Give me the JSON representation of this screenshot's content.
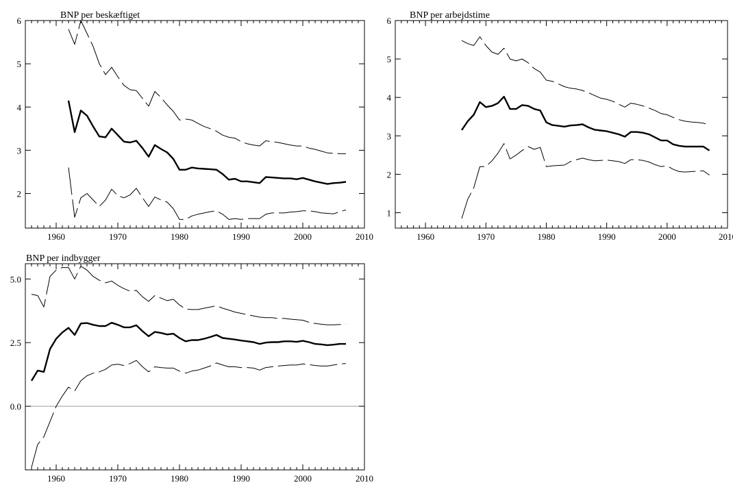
{
  "chart_data": [
    {
      "type": "line",
      "title": "BNP per beskæftiget",
      "xlabel": "",
      "ylabel": "",
      "xlim": [
        1955,
        2010
      ],
      "ylim": [
        1.2,
        6
      ],
      "xticks": [
        1960,
        1970,
        1980,
        1990,
        2000,
        2010
      ],
      "yticks": [
        2,
        3,
        4,
        5,
        6
      ],
      "ytick_labels": [
        "2",
        "3",
        "4",
        "5",
        "6"
      ],
      "grid": false,
      "legend": "none",
      "x": [
        1962,
        1963,
        1964,
        1965,
        1966,
        1967,
        1968,
        1969,
        1970,
        1971,
        1972,
        1973,
        1974,
        1975,
        1976,
        1977,
        1978,
        1979,
        1980,
        1981,
        1982,
        1983,
        1984,
        1985,
        1986,
        1987,
        1988,
        1989,
        1990,
        1991,
        1992,
        1993,
        1994,
        1995,
        1996,
        1997,
        1998,
        1999,
        2000,
        2001,
        2002,
        2003,
        2004,
        2005,
        2006,
        2007
      ],
      "series": [
        {
          "values": [
            4.15,
            3.42,
            3.92,
            3.8,
            3.55,
            3.32,
            3.3,
            3.5,
            3.35,
            3.2,
            3.18,
            3.22,
            3.05,
            2.85,
            3.12,
            3.03,
            2.95,
            2.8,
            2.55,
            2.55,
            2.6,
            2.58,
            2.57,
            2.56,
            2.55,
            2.45,
            2.32,
            2.34,
            2.28,
            2.28,
            2.26,
            2.24,
            2.38,
            2.37,
            2.36,
            2.35,
            2.35,
            2.33,
            2.36,
            2.32,
            2.28,
            2.25,
            2.22,
            2.24,
            2.25,
            2.27
          ],
          "style": "solid-thick"
        },
        {
          "values": [
            5.8,
            5.45,
            6.0,
            5.7,
            5.4,
            5.0,
            4.75,
            4.92,
            4.7,
            4.5,
            4.4,
            4.38,
            4.2,
            4.02,
            4.36,
            4.22,
            4.05,
            3.9,
            3.7,
            3.72,
            3.7,
            3.62,
            3.55,
            3.5,
            3.44,
            3.35,
            3.3,
            3.28,
            3.2,
            3.15,
            3.12,
            3.1,
            3.22,
            3.2,
            3.18,
            3.15,
            3.12,
            3.1,
            3.1,
            3.05,
            3.02,
            2.98,
            2.94,
            2.93,
            2.92,
            2.92
          ],
          "style": "dashed"
        },
        {
          "values": [
            2.6,
            1.45,
            1.9,
            2.0,
            1.85,
            1.7,
            1.85,
            2.1,
            1.95,
            1.9,
            1.97,
            2.12,
            1.9,
            1.7,
            1.92,
            1.85,
            1.8,
            1.65,
            1.4,
            1.4,
            1.48,
            1.52,
            1.55,
            1.58,
            1.6,
            1.52,
            1.4,
            1.42,
            1.4,
            1.42,
            1.42,
            1.42,
            1.52,
            1.55,
            1.55,
            1.55,
            1.57,
            1.58,
            1.6,
            1.6,
            1.58,
            1.55,
            1.54,
            1.53,
            1.58,
            1.62
          ],
          "style": "dashed"
        }
      ]
    },
    {
      "type": "line",
      "title": "BNP per arbejdstime",
      "xlabel": "",
      "ylabel": "",
      "xlim": [
        1955,
        2010
      ],
      "ylim": [
        0.6,
        6
      ],
      "xticks": [
        1960,
        1970,
        1980,
        1990,
        2000,
        2010
      ],
      "yticks": [
        1,
        2,
        3,
        4,
        5,
        6
      ],
      "ytick_labels": [
        "1",
        "2",
        "3",
        "4",
        "5",
        "6"
      ],
      "grid": false,
      "legend": "none",
      "x": [
        1966,
        1967,
        1968,
        1969,
        1970,
        1971,
        1972,
        1973,
        1974,
        1975,
        1976,
        1977,
        1978,
        1979,
        1980,
        1981,
        1982,
        1983,
        1984,
        1985,
        1986,
        1987,
        1988,
        1989,
        1990,
        1991,
        1992,
        1993,
        1994,
        1995,
        1996,
        1997,
        1998,
        1999,
        2000,
        2001,
        2002,
        2003,
        2004,
        2005,
        2006,
        2007
      ],
      "series": [
        {
          "values": [
            3.15,
            3.38,
            3.55,
            3.88,
            3.75,
            3.78,
            3.85,
            4.02,
            3.7,
            3.7,
            3.8,
            3.78,
            3.7,
            3.66,
            3.35,
            3.28,
            3.26,
            3.24,
            3.27,
            3.28,
            3.3,
            3.22,
            3.16,
            3.14,
            3.12,
            3.08,
            3.04,
            2.98,
            3.1,
            3.1,
            3.08,
            3.04,
            2.96,
            2.88,
            2.88,
            2.78,
            2.74,
            2.72,
            2.72,
            2.72,
            2.72,
            2.62
          ],
          "style": "solid-thick"
        },
        {
          "values": [
            5.48,
            5.4,
            5.35,
            5.58,
            5.35,
            5.18,
            5.12,
            5.28,
            5.0,
            4.95,
            5.0,
            4.9,
            4.75,
            4.66,
            4.45,
            4.42,
            4.35,
            4.28,
            4.24,
            4.22,
            4.18,
            4.12,
            4.05,
            3.98,
            3.95,
            3.9,
            3.82,
            3.75,
            3.85,
            3.82,
            3.78,
            3.72,
            3.66,
            3.58,
            3.55,
            3.48,
            3.42,
            3.38,
            3.36,
            3.35,
            3.33,
            3.28
          ],
          "style": "dashed"
        },
        {
          "values": [
            0.85,
            1.35,
            1.65,
            2.2,
            2.2,
            2.35,
            2.55,
            2.8,
            2.4,
            2.5,
            2.62,
            2.72,
            2.65,
            2.7,
            2.2,
            2.22,
            2.23,
            2.24,
            2.33,
            2.38,
            2.42,
            2.38,
            2.35,
            2.36,
            2.37,
            2.35,
            2.33,
            2.28,
            2.38,
            2.38,
            2.36,
            2.32,
            2.25,
            2.2,
            2.22,
            2.13,
            2.07,
            2.06,
            2.07,
            2.08,
            2.09,
            1.98
          ],
          "style": "dashed"
        }
      ]
    },
    {
      "type": "line",
      "title": "BNP per indbygger",
      "xlabel": "",
      "ylabel": "",
      "xlim": [
        1955,
        2010
      ],
      "ylim": [
        -2.5,
        5.6
      ],
      "xticks": [
        1960,
        1970,
        1980,
        1990,
        2000,
        2010
      ],
      "yticks": [
        0.0,
        2.5,
        5.0
      ],
      "ytick_labels": [
        "0.0",
        "2.5",
        "5.0"
      ],
      "zero_line": true,
      "grid": false,
      "legend": "none",
      "x": [
        1956,
        1957,
        1958,
        1959,
        1960,
        1961,
        1962,
        1963,
        1964,
        1965,
        1966,
        1967,
        1968,
        1969,
        1970,
        1971,
        1972,
        1973,
        1974,
        1975,
        1976,
        1977,
        1978,
        1979,
        1980,
        1981,
        1982,
        1983,
        1984,
        1985,
        1986,
        1987,
        1988,
        1989,
        1990,
        1991,
        1992,
        1993,
        1994,
        1995,
        1996,
        1997,
        1998,
        1999,
        2000,
        2001,
        2002,
        2003,
        2004,
        2005,
        2006,
        2007
      ],
      "series": [
        {
          "values": [
            1.0,
            1.4,
            1.35,
            2.25,
            2.65,
            2.9,
            3.08,
            2.8,
            3.25,
            3.27,
            3.2,
            3.15,
            3.15,
            3.28,
            3.2,
            3.1,
            3.1,
            3.18,
            2.95,
            2.75,
            2.92,
            2.88,
            2.82,
            2.85,
            2.68,
            2.55,
            2.6,
            2.6,
            2.65,
            2.72,
            2.8,
            2.68,
            2.65,
            2.62,
            2.58,
            2.55,
            2.52,
            2.45,
            2.5,
            2.52,
            2.52,
            2.55,
            2.55,
            2.53,
            2.57,
            2.52,
            2.45,
            2.43,
            2.4,
            2.42,
            2.45,
            2.45
          ],
          "style": "solid-thick"
        },
        {
          "values": [
            4.4,
            4.35,
            3.9,
            5.1,
            5.35,
            5.45,
            5.45,
            5.0,
            5.5,
            5.35,
            5.1,
            4.95,
            4.85,
            4.92,
            4.75,
            4.62,
            4.52,
            4.55,
            4.3,
            4.12,
            4.35,
            4.25,
            4.15,
            4.2,
            3.98,
            3.82,
            3.8,
            3.8,
            3.85,
            3.9,
            3.95,
            3.85,
            3.78,
            3.7,
            3.65,
            3.6,
            3.55,
            3.5,
            3.48,
            3.48,
            3.45,
            3.45,
            3.42,
            3.4,
            3.38,
            3.3,
            3.25,
            3.22,
            3.2,
            3.2,
            3.21,
            3.22
          ],
          "style": "dashed"
        },
        {
          "values": [
            -2.4,
            -1.5,
            -1.2,
            -0.6,
            0.0,
            0.4,
            0.75,
            0.6,
            1.0,
            1.2,
            1.3,
            1.35,
            1.45,
            1.62,
            1.65,
            1.6,
            1.68,
            1.8,
            1.55,
            1.35,
            1.55,
            1.52,
            1.5,
            1.5,
            1.38,
            1.3,
            1.38,
            1.42,
            1.5,
            1.58,
            1.7,
            1.62,
            1.55,
            1.55,
            1.52,
            1.52,
            1.5,
            1.42,
            1.52,
            1.55,
            1.58,
            1.6,
            1.62,
            1.62,
            1.66,
            1.64,
            1.6,
            1.58,
            1.58,
            1.62,
            1.66,
            1.68
          ],
          "style": "dashed"
        }
      ]
    }
  ]
}
